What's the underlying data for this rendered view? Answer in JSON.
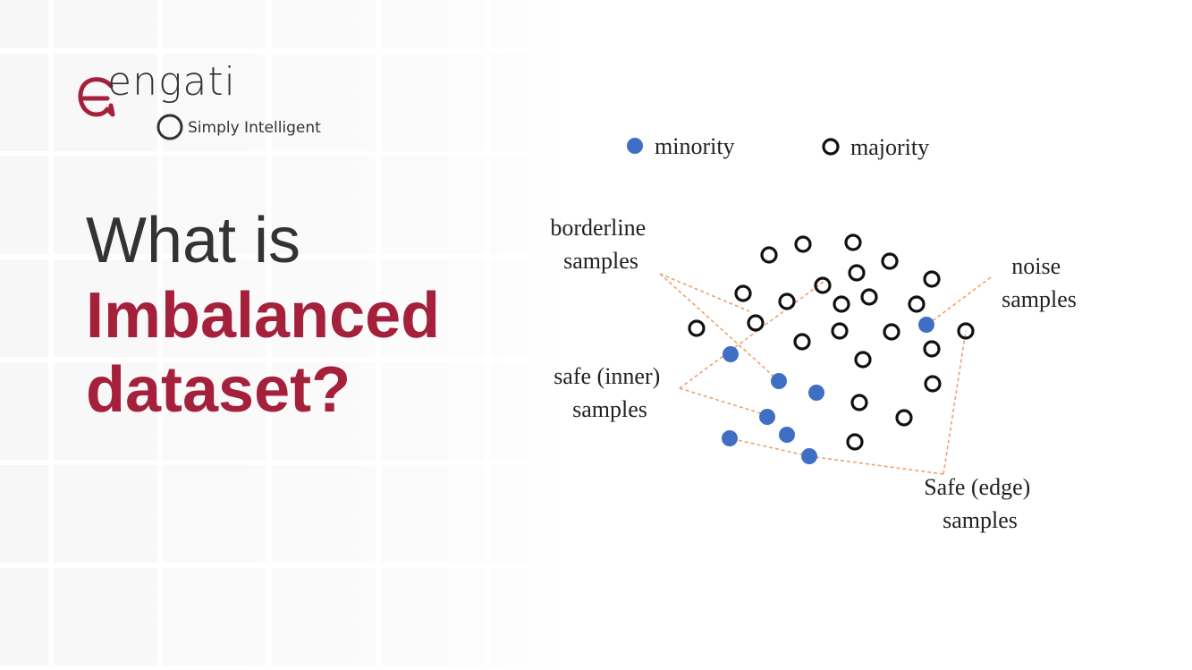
{
  "brand": {
    "name": "engati",
    "tagline": "Simply Intelligent"
  },
  "headline": {
    "line1": "What is",
    "line2": "Imbalanced",
    "line3": "dataset?"
  },
  "diagram": {
    "legend": {
      "minority": "minority",
      "majority": "majority"
    },
    "labels": {
      "borderline": [
        "borderline",
        "samples"
      ],
      "noise": [
        "noise",
        "samples"
      ],
      "safe_inner": [
        "safe (inner)",
        "samples"
      ],
      "safe_edge": [
        "Safe (edge)",
        "samples"
      ]
    },
    "colors": {
      "minority": "#3f6fc4",
      "majority": "#111111",
      "leader": "#f0a070",
      "accent": "#a4203b"
    }
  }
}
